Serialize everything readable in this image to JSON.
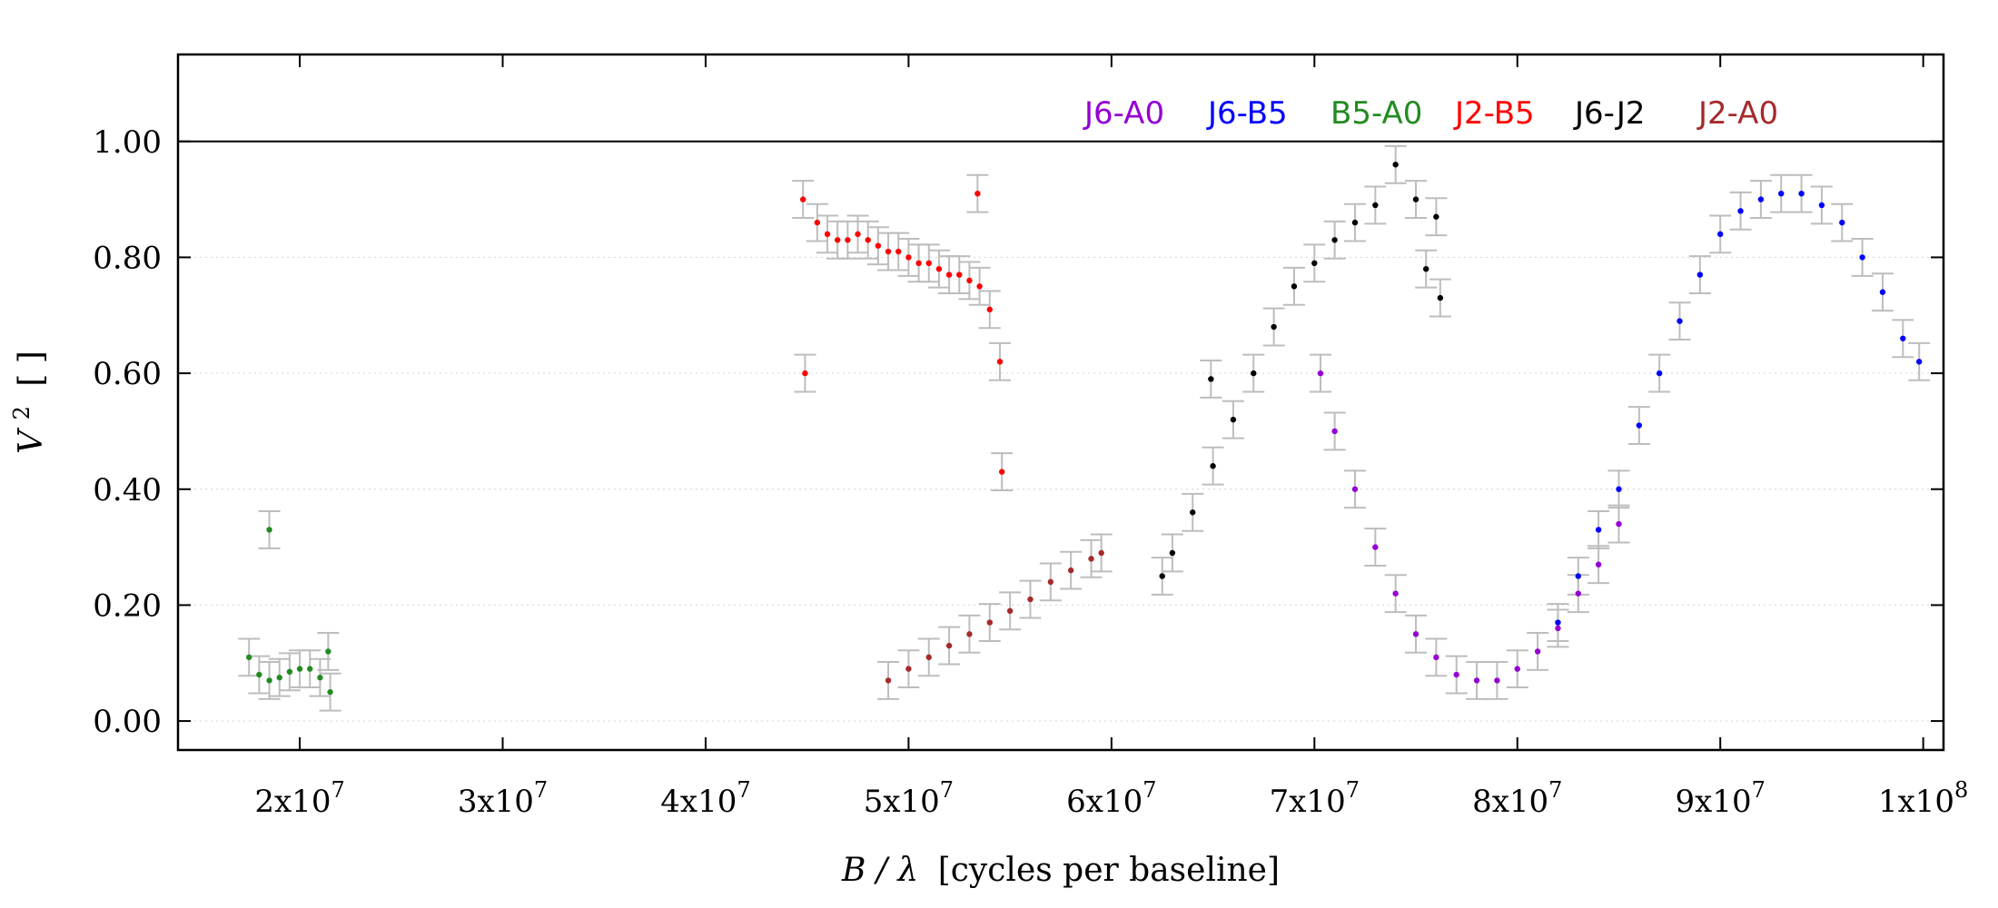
{
  "chart_data": {
    "type": "scatter",
    "title": "",
    "xlabel": "B / λ [cycles per baseline]",
    "xlabel_parts": {
      "italic": "B / λ",
      "rest": "[cycles per baseline]"
    },
    "ylabel": "V² [ ]",
    "ylabel_parts": {
      "italic": "V",
      "sup": "2",
      "rest": "[ ]"
    },
    "xlim": [
      14000000,
      101000000
    ],
    "ylim": [
      -0.05,
      1.15
    ],
    "reference_line_y": 1.0,
    "grid": "horizontal dotted",
    "legend_position": "top-right (inside, single row)",
    "error_bar_color": "#bdbdbd",
    "x_ticks": [
      {
        "value": 20000000,
        "label_base": "2x10",
        "label_exp": "7"
      },
      {
        "value": 30000000,
        "label_base": "3x10",
        "label_exp": "7"
      },
      {
        "value": 40000000,
        "label_base": "4x10",
        "label_exp": "7"
      },
      {
        "value": 50000000,
        "label_base": "5x10",
        "label_exp": "7"
      },
      {
        "value": 60000000,
        "label_base": "6x10",
        "label_exp": "7"
      },
      {
        "value": 70000000,
        "label_base": "7x10",
        "label_exp": "7"
      },
      {
        "value": 80000000,
        "label_base": "8x10",
        "label_exp": "7"
      },
      {
        "value": 90000000,
        "label_base": "9x10",
        "label_exp": "7"
      },
      {
        "value": 100000000,
        "label_base": "1x10",
        "label_exp": "8"
      }
    ],
    "y_ticks": [
      {
        "value": 0.0,
        "label": "0.00"
      },
      {
        "value": 0.2,
        "label": "0.20"
      },
      {
        "value": 0.4,
        "label": "0.40"
      },
      {
        "value": 0.6,
        "label": "0.60"
      },
      {
        "value": 0.8,
        "label": "0.80"
      },
      {
        "value": 1.0,
        "label": "1.00"
      }
    ],
    "series": [
      {
        "name": "J6-A0",
        "color": "#9400d3",
        "points": [
          [
            70300000,
            0.6
          ],
          [
            71000000,
            0.5
          ],
          [
            72000000,
            0.4
          ],
          [
            73000000,
            0.3
          ],
          [
            74000000,
            0.22
          ],
          [
            75000000,
            0.15
          ],
          [
            76000000,
            0.11
          ],
          [
            77000000,
            0.08
          ],
          [
            78000000,
            0.07
          ],
          [
            79000000,
            0.07
          ],
          [
            80000000,
            0.09
          ],
          [
            81000000,
            0.12
          ],
          [
            82000000,
            0.16
          ],
          [
            83000000,
            0.22
          ],
          [
            84000000,
            0.27
          ],
          [
            85000000,
            0.34
          ]
        ]
      },
      {
        "name": "J6-B5",
        "color": "#0000ff",
        "points": [
          [
            82000000,
            0.17
          ],
          [
            83000000,
            0.25
          ],
          [
            84000000,
            0.33
          ],
          [
            85000000,
            0.4
          ],
          [
            86000000,
            0.51
          ],
          [
            87000000,
            0.6
          ],
          [
            88000000,
            0.69
          ],
          [
            89000000,
            0.77
          ],
          [
            90000000,
            0.84
          ],
          [
            91000000,
            0.88
          ],
          [
            92000000,
            0.9
          ],
          [
            93000000,
            0.91
          ],
          [
            94000000,
            0.91
          ],
          [
            95000000,
            0.89
          ],
          [
            96000000,
            0.86
          ],
          [
            97000000,
            0.8
          ],
          [
            98000000,
            0.74
          ],
          [
            99000000,
            0.66
          ],
          [
            99800000,
            0.62
          ]
        ]
      },
      {
        "name": "B5-A0",
        "color": "#228b22",
        "points": [
          [
            17500000,
            0.11
          ],
          [
            18000000,
            0.08
          ],
          [
            18500000,
            0.07
          ],
          [
            19000000,
            0.075
          ],
          [
            19500000,
            0.085
          ],
          [
            20000000,
            0.09
          ],
          [
            20500000,
            0.09
          ],
          [
            21000000,
            0.075
          ],
          [
            21500000,
            0.05
          ],
          [
            18500000,
            0.33
          ],
          [
            21400000,
            0.12
          ]
        ]
      },
      {
        "name": "J2-B5",
        "color": "#ff0000",
        "points": [
          [
            44800000,
            0.9
          ],
          [
            45500000,
            0.86
          ],
          [
            46000000,
            0.84
          ],
          [
            46500000,
            0.83
          ],
          [
            47000000,
            0.83
          ],
          [
            47500000,
            0.84
          ],
          [
            48000000,
            0.83
          ],
          [
            48500000,
            0.82
          ],
          [
            49000000,
            0.81
          ],
          [
            49500000,
            0.81
          ],
          [
            50000000,
            0.8
          ],
          [
            50500000,
            0.79
          ],
          [
            51000000,
            0.79
          ],
          [
            51500000,
            0.78
          ],
          [
            52000000,
            0.77
          ],
          [
            52500000,
            0.77
          ],
          [
            53000000,
            0.76
          ],
          [
            53500000,
            0.75
          ],
          [
            54000000,
            0.71
          ],
          [
            54500000,
            0.62
          ],
          [
            44900000,
            0.6
          ],
          [
            54600000,
            0.43
          ],
          [
            53400000,
            0.91
          ]
        ]
      },
      {
        "name": "J6-J2",
        "color": "#000000",
        "points": [
          [
            62500000,
            0.25
          ],
          [
            63000000,
            0.29
          ],
          [
            64000000,
            0.36
          ],
          [
            65000000,
            0.44
          ],
          [
            66000000,
            0.52
          ],
          [
            67000000,
            0.6
          ],
          [
            68000000,
            0.68
          ],
          [
            69000000,
            0.75
          ],
          [
            70000000,
            0.79
          ],
          [
            71000000,
            0.83
          ],
          [
            72000000,
            0.86
          ],
          [
            73000000,
            0.89
          ],
          [
            74000000,
            0.96
          ],
          [
            75000000,
            0.9
          ],
          [
            76000000,
            0.87
          ],
          [
            64900000,
            0.59
          ],
          [
            75500000,
            0.78
          ],
          [
            76200000,
            0.73
          ]
        ]
      },
      {
        "name": "J2-A0",
        "color": "#a52a2a",
        "points": [
          [
            49000000,
            0.07
          ],
          [
            50000000,
            0.09
          ],
          [
            51000000,
            0.11
          ],
          [
            52000000,
            0.13
          ],
          [
            53000000,
            0.15
          ],
          [
            54000000,
            0.17
          ],
          [
            55000000,
            0.19
          ],
          [
            56000000,
            0.21
          ],
          [
            57000000,
            0.24
          ],
          [
            58000000,
            0.26
          ],
          [
            59000000,
            0.28
          ],
          [
            59500000,
            0.29
          ]
        ]
      }
    ]
  }
}
